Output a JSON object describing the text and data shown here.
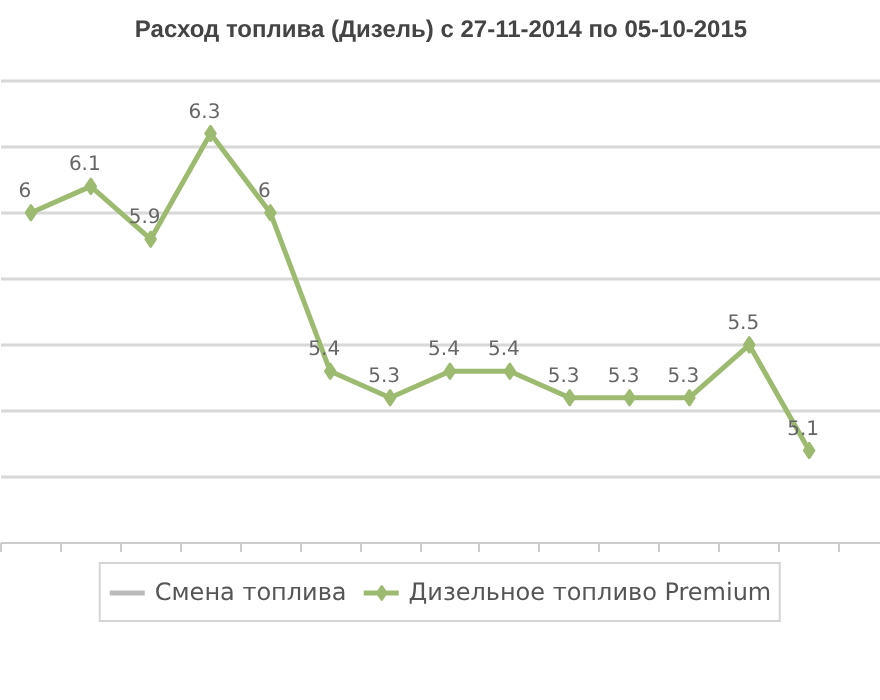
{
  "chart_data": {
    "type": "line",
    "title": "Расход топлива (Дизель) с 27-11-2014 по 05-10-2015",
    "categories": [
      null,
      null,
      null,
      null,
      null,
      null,
      null,
      null,
      null,
      null,
      null,
      null,
      null,
      null
    ],
    "series": [
      {
        "name": "Смена топлива",
        "color": "#bbbbbb",
        "marker": "none",
        "values": [
          null,
          null,
          null,
          null,
          null,
          null,
          null,
          null,
          null,
          null,
          null,
          null,
          null,
          null
        ]
      },
      {
        "name": "Дизельное топливо Premium",
        "color": "#9dbb70",
        "marker": "diamond",
        "values": [
          6,
          6.1,
          5.9,
          6.3,
          6,
          5.4,
          5.3,
          5.4,
          5.4,
          5.3,
          5.3,
          5.3,
          5.5,
          5.1
        ]
      }
    ],
    "data_labels": true,
    "yticks": [
      {
        "value": 4.75,
        "label": null
      },
      {
        "value": 5,
        "label": null
      },
      {
        "value": 5.25,
        "label": null
      },
      {
        "value": 5.5,
        "label": null
      },
      {
        "value": 5.75,
        "label": null
      },
      {
        "value": 6,
        "label": null
      },
      {
        "value": 6.25,
        "label": null
      },
      {
        "value": 6.5,
        "label": null
      }
    ],
    "tick_labels": false,
    "grid": "y",
    "legend": "bottom"
  }
}
